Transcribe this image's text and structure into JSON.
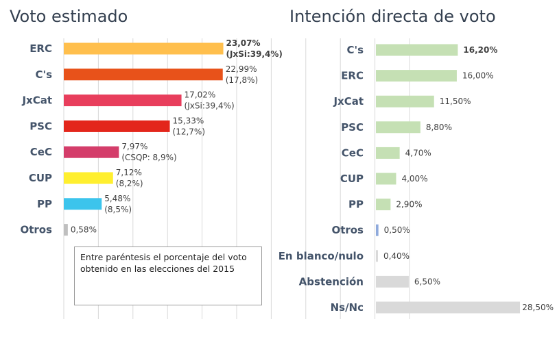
{
  "chart_data": [
    {
      "type": "bar",
      "orientation": "horizontal",
      "title": "Voto estimado",
      "categories": [
        "ERC",
        "C's",
        "JxCat",
        "PSC",
        "CeC",
        "CUP",
        "PP",
        "Otros"
      ],
      "values": [
        23.07,
        22.99,
        17.02,
        15.33,
        7.97,
        7.12,
        5.48,
        0.58
      ],
      "value_labels": [
        "23,07%",
        "22,99%",
        "17,02%",
        "15,33%",
        "7,97%",
        "7,12%",
        "5,48%",
        "0,58%"
      ],
      "previous_labels": [
        "(JxSi:39,4%)",
        "(17,8%)",
        "(JxSi:39,4%)",
        "(12,7%)",
        "(CSQP: 8,9%)",
        "(8,2%)",
        "(8,5%)",
        ""
      ],
      "colors": [
        "#ffbf4d",
        "#e8521a",
        "#e83e5c",
        "#e3261b",
        "#d43d6a",
        "#ffef2f",
        "#3cc4ec",
        "#bfbfbf"
      ],
      "bold": [
        true,
        false,
        false,
        false,
        false,
        false,
        false,
        false
      ],
      "xlim": [
        0,
        50
      ],
      "grid": true,
      "note": {
        "line1": "Entre paréntesis el porcentaje del voto",
        "line2": "obtenido en las elecciones del 2015"
      }
    },
    {
      "type": "bar",
      "orientation": "horizontal",
      "title": "Intención directa de voto",
      "categories": [
        "C's",
        "ERC",
        "JxCat",
        "PSC",
        "CeC",
        "CUP",
        "PP",
        "Otros",
        "En blanco/nulo",
        "Abstención",
        "Ns/Nc"
      ],
      "values": [
        16.2,
        16.0,
        11.5,
        8.8,
        4.7,
        4.0,
        2.9,
        0.5,
        0.4,
        6.5,
        28.5
      ],
      "value_labels": [
        "16,20%",
        "16,00%",
        "11,50%",
        "8,80%",
        "4,70%",
        "4,00%",
        "2,90%",
        "0,50%",
        "0,40%",
        "6,50%",
        "28,50%"
      ],
      "colors": [
        "#c5e0b4",
        "#c5e0b4",
        "#c5e0b4",
        "#c5e0b4",
        "#c5e0b4",
        "#c5e0b4",
        "#c5e0b4",
        "#8faadc",
        "#d9d9d9",
        "#d9d9d9",
        "#d9d9d9"
      ],
      "bold": [
        true,
        false,
        false,
        false,
        false,
        false,
        false,
        false,
        false,
        false,
        false
      ],
      "xlim": [
        0,
        30
      ],
      "grid": false
    }
  ]
}
